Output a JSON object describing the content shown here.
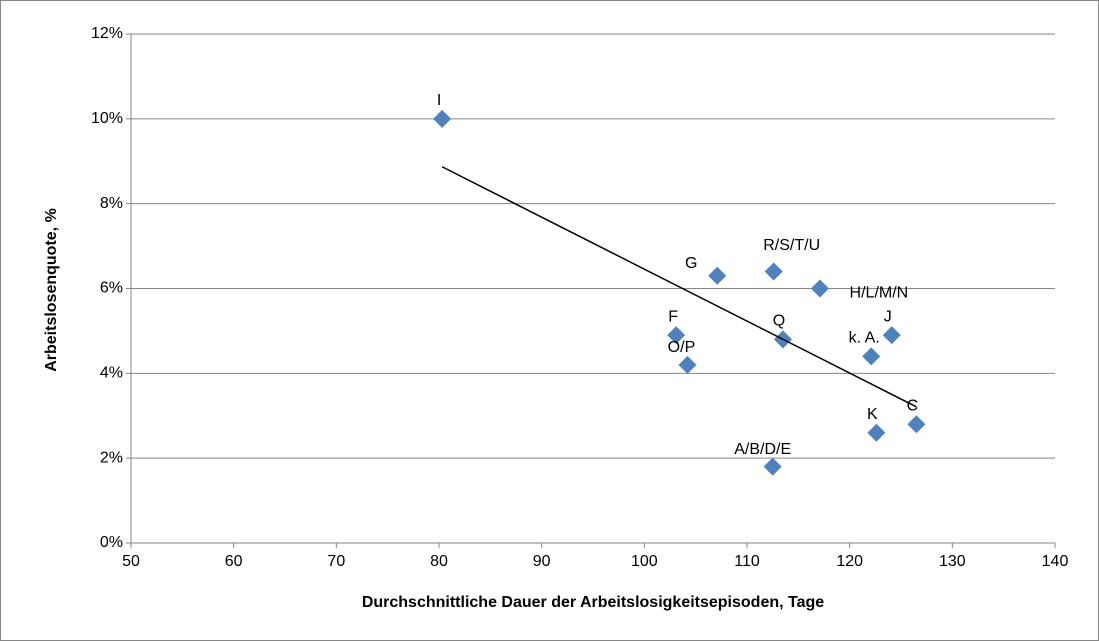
{
  "chart_data": {
    "type": "scatter",
    "x_label": "Durchschnittliche Dauer der Arbeitslosigkeitsepisoden, Tage",
    "y_label": "Arbeitslosenquote, %",
    "x": [
      80.3,
      107.1,
      112.6,
      117.1,
      124.1,
      122.1,
      113.5,
      103.1,
      104.2,
      122.6,
      126.5,
      112.5
    ],
    "values": [
      10.0,
      6.3,
      6.4,
      6.0,
      4.9,
      4.4,
      4.8,
      4.9,
      4.2,
      2.6,
      2.8,
      1.8
    ],
    "point_labels": [
      "I",
      "G",
      "R/S/T/U",
      "H/L/M/N",
      "J",
      "k. A.",
      "Q",
      "F",
      "O/P",
      "K",
      "C",
      "A/B/D/E"
    ],
    "color": "#4f81bd",
    "trendline": {
      "x": [
        80.3,
        126.5
      ],
      "y": [
        8.87,
        3.21
      ],
      "color": "#000000"
    },
    "xlim": [
      50,
      140
    ],
    "xticks": [
      50,
      60,
      70,
      80,
      90,
      100,
      110,
      120,
      130,
      140
    ],
    "ylim": [
      0,
      12
    ],
    "yticks": [
      {
        "value": 0,
        "label": "0%"
      },
      {
        "value": 2,
        "label": "2%"
      },
      {
        "value": 4,
        "label": "4%"
      },
      {
        "value": 6,
        "label": "6%"
      },
      {
        "value": 8,
        "label": "8%"
      },
      {
        "value": 10,
        "label": "10%"
      },
      {
        "value": 12,
        "label": "12%"
      }
    ],
    "grid": true
  }
}
